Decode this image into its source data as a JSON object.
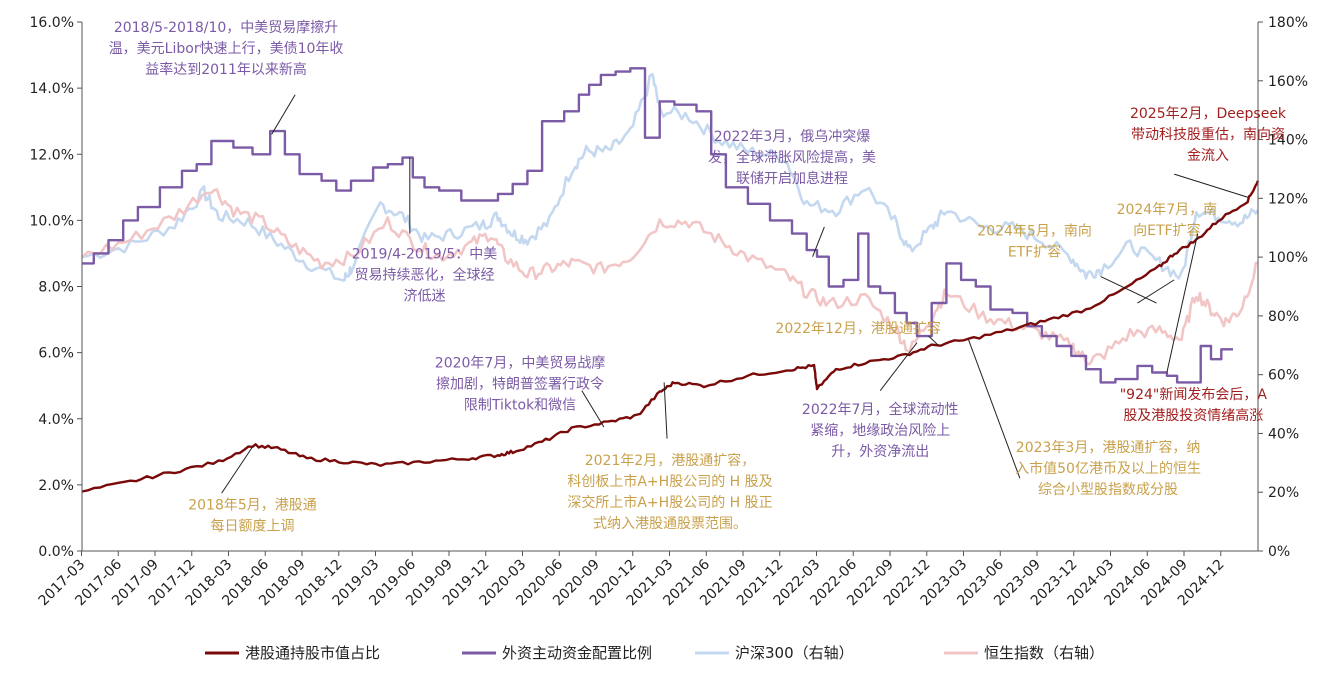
{
  "chart_data": {
    "type": "line",
    "left_axis": {
      "min": 0,
      "max": 16,
      "ticks": [
        "0.0%",
        "2.0%",
        "4.0%",
        "6.0%",
        "8.0%",
        "10.0%",
        "12.0%",
        "14.0%",
        "16.0%"
      ]
    },
    "right_axis": {
      "min": 0,
      "max": 180,
      "ticks": [
        "0%",
        "20%",
        "40%",
        "60%",
        "80%",
        "100%",
        "120%",
        "140%",
        "160%",
        "180%"
      ]
    },
    "x_range": [
      2017.17,
      2025.17
    ],
    "x_ticks": [
      "2017-03",
      "2017-06",
      "2017-09",
      "2017-12",
      "2018-03",
      "2018-06",
      "2018-09",
      "2018-12",
      "2019-03",
      "2019-06",
      "2019-09",
      "2019-12",
      "2020-03",
      "2020-06",
      "2020-09",
      "2020-12",
      "2021-03",
      "2021-06",
      "2021-09",
      "2021-12",
      "2022-03",
      "2022-06",
      "2022-09",
      "2022-12",
      "2023-03",
      "2023-06",
      "2023-09",
      "2023-12",
      "2024-03",
      "2024-06",
      "2024-09",
      "2024-12"
    ],
    "grid": false,
    "legend_position": "bottom",
    "series": [
      {
        "name": "港股通持股市值占比",
        "axis": "left",
        "color": "#7a0a0a",
        "points": [
          [
            2017.17,
            1.8
          ],
          [
            2017.5,
            2.1
          ],
          [
            2017.8,
            2.4
          ],
          [
            2018.1,
            2.7
          ],
          [
            2018.33,
            3.2
          ],
          [
            2018.5,
            3.1
          ],
          [
            2018.7,
            2.8
          ],
          [
            2018.95,
            2.7
          ],
          [
            2019.2,
            2.6
          ],
          [
            2019.5,
            2.7
          ],
          [
            2019.8,
            2.8
          ],
          [
            2020.0,
            2.9
          ],
          [
            2020.1,
            3.0
          ],
          [
            2020.3,
            3.3
          ],
          [
            2020.5,
            3.7
          ],
          [
            2020.75,
            3.9
          ],
          [
            2020.95,
            4.1
          ],
          [
            2021.1,
            4.8
          ],
          [
            2021.2,
            5.1
          ],
          [
            2021.4,
            5.0
          ],
          [
            2021.7,
            5.3
          ],
          [
            2022.0,
            5.5
          ],
          [
            2022.15,
            5.6
          ],
          [
            2022.17,
            4.9
          ],
          [
            2022.3,
            5.5
          ],
          [
            2022.5,
            5.7
          ],
          [
            2022.75,
            5.9
          ],
          [
            2022.95,
            6.2
          ],
          [
            2023.2,
            6.4
          ],
          [
            2023.5,
            6.7
          ],
          [
            2023.75,
            7.0
          ],
          [
            2024.0,
            7.3
          ],
          [
            2024.25,
            7.9
          ],
          [
            2024.5,
            8.6
          ],
          [
            2024.6,
            9.0
          ],
          [
            2024.75,
            9.4
          ],
          [
            2024.9,
            10.0
          ],
          [
            2025.1,
            10.6
          ],
          [
            2025.17,
            11.2
          ]
        ]
      },
      {
        "name": "外资主动资金配置比例",
        "axis": "left",
        "color": "#7b5aa6",
        "points": [
          [
            2017.17,
            8.7
          ],
          [
            2017.25,
            9.0
          ],
          [
            2017.35,
            9.4
          ],
          [
            2017.45,
            10.0
          ],
          [
            2017.55,
            10.4
          ],
          [
            2017.7,
            11.0
          ],
          [
            2017.85,
            11.5
          ],
          [
            2017.95,
            11.7
          ],
          [
            2018.05,
            12.4
          ],
          [
            2018.2,
            12.2
          ],
          [
            2018.33,
            12.0
          ],
          [
            2018.45,
            12.7
          ],
          [
            2018.55,
            12.0
          ],
          [
            2018.65,
            11.4
          ],
          [
            2018.8,
            11.2
          ],
          [
            2018.9,
            10.9
          ],
          [
            2019.0,
            11.2
          ],
          [
            2019.15,
            11.6
          ],
          [
            2019.25,
            11.7
          ],
          [
            2019.35,
            11.9
          ],
          [
            2019.42,
            11.3
          ],
          [
            2019.5,
            11.0
          ],
          [
            2019.6,
            10.9
          ],
          [
            2019.75,
            10.6
          ],
          [
            2019.9,
            10.6
          ],
          [
            2020.0,
            10.8
          ],
          [
            2020.1,
            11.1
          ],
          [
            2020.2,
            11.5
          ],
          [
            2020.3,
            13.0
          ],
          [
            2020.45,
            13.3
          ],
          [
            2020.55,
            13.8
          ],
          [
            2020.62,
            14.1
          ],
          [
            2020.7,
            14.4
          ],
          [
            2020.8,
            14.5
          ],
          [
            2020.9,
            14.6
          ],
          [
            2021.0,
            12.5
          ],
          [
            2021.1,
            13.6
          ],
          [
            2021.2,
            13.5
          ],
          [
            2021.35,
            13.3
          ],
          [
            2021.45,
            12.0
          ],
          [
            2021.55,
            11.0
          ],
          [
            2021.7,
            10.5
          ],
          [
            2021.85,
            10.0
          ],
          [
            2022.0,
            9.6
          ],
          [
            2022.1,
            9.1
          ],
          [
            2022.17,
            8.9
          ],
          [
            2022.25,
            8.0
          ],
          [
            2022.35,
            8.2
          ],
          [
            2022.45,
            9.6
          ],
          [
            2022.52,
            8.0
          ],
          [
            2022.6,
            7.8
          ],
          [
            2022.7,
            7.2
          ],
          [
            2022.78,
            6.9
          ],
          [
            2022.85,
            6.5
          ],
          [
            2022.95,
            7.5
          ],
          [
            2023.05,
            8.7
          ],
          [
            2023.15,
            8.2
          ],
          [
            2023.25,
            8.0
          ],
          [
            2023.35,
            7.3
          ],
          [
            2023.5,
            7.2
          ],
          [
            2023.6,
            6.8
          ],
          [
            2023.7,
            6.5
          ],
          [
            2023.8,
            6.2
          ],
          [
            2023.9,
            5.9
          ],
          [
            2024.0,
            5.5
          ],
          [
            2024.1,
            5.1
          ],
          [
            2024.2,
            5.2
          ],
          [
            2024.35,
            5.6
          ],
          [
            2024.45,
            5.4
          ],
          [
            2024.55,
            5.3
          ],
          [
            2024.62,
            5.1
          ],
          [
            2024.7,
            5.1
          ],
          [
            2024.78,
            6.2
          ],
          [
            2024.85,
            5.8
          ],
          [
            2024.92,
            6.1
          ],
          [
            2025.0,
            6.1
          ]
        ]
      },
      {
        "name": "沪深300（右轴）",
        "axis": "right",
        "color": "#c4d8f0",
        "points": [
          [
            2017.17,
            100
          ],
          [
            2017.5,
            104
          ],
          [
            2017.8,
            111
          ],
          [
            2018.0,
            122
          ],
          [
            2018.1,
            114
          ],
          [
            2018.3,
            112
          ],
          [
            2018.5,
            105
          ],
          [
            2018.7,
            98
          ],
          [
            2018.95,
            92
          ],
          [
            2019.0,
            96
          ],
          [
            2019.2,
            118
          ],
          [
            2019.35,
            114
          ],
          [
            2019.5,
            106
          ],
          [
            2019.7,
            108
          ],
          [
            2019.9,
            111
          ],
          [
            2020.0,
            114
          ],
          [
            2020.1,
            108
          ],
          [
            2020.2,
            106
          ],
          [
            2020.35,
            112
          ],
          [
            2020.5,
            130
          ],
          [
            2020.6,
            136
          ],
          [
            2020.75,
            136
          ],
          [
            2020.9,
            142
          ],
          [
            2021.05,
            162
          ],
          [
            2021.1,
            150
          ],
          [
            2021.3,
            148
          ],
          [
            2021.5,
            140
          ],
          [
            2021.7,
            136
          ],
          [
            2021.95,
            134
          ],
          [
            2022.1,
            118
          ],
          [
            2022.3,
            116
          ],
          [
            2022.5,
            124
          ],
          [
            2022.7,
            112
          ],
          [
            2022.8,
            102
          ],
          [
            2022.95,
            110
          ],
          [
            2023.05,
            116
          ],
          [
            2023.3,
            110
          ],
          [
            2023.5,
            110
          ],
          [
            2023.7,
            106
          ],
          [
            2023.9,
            100
          ],
          [
            2024.0,
            94
          ],
          [
            2024.1,
            96
          ],
          [
            2024.3,
            104
          ],
          [
            2024.5,
            98
          ],
          [
            2024.65,
            93
          ],
          [
            2024.75,
            116
          ],
          [
            2024.9,
            114
          ],
          [
            2025.05,
            112
          ],
          [
            2025.17,
            116
          ]
        ]
      },
      {
        "name": "恒生指数（右轴）",
        "axis": "right",
        "color": "#f2c6c6",
        "points": [
          [
            2017.17,
            100
          ],
          [
            2017.5,
            106
          ],
          [
            2017.8,
            114
          ],
          [
            2018.05,
            124
          ],
          [
            2018.2,
            116
          ],
          [
            2018.4,
            112
          ],
          [
            2018.6,
            104
          ],
          [
            2018.8,
            98
          ],
          [
            2019.0,
            100
          ],
          [
            2019.25,
            112
          ],
          [
            2019.45,
            104
          ],
          [
            2019.6,
            100
          ],
          [
            2019.8,
            104
          ],
          [
            2019.95,
            108
          ],
          [
            2020.05,
            100
          ],
          [
            2020.2,
            94
          ],
          [
            2020.35,
            96
          ],
          [
            2020.5,
            98
          ],
          [
            2020.7,
            96
          ],
          [
            2020.9,
            100
          ],
          [
            2021.1,
            112
          ],
          [
            2021.3,
            112
          ],
          [
            2021.5,
            106
          ],
          [
            2021.7,
            100
          ],
          [
            2021.95,
            94
          ],
          [
            2022.1,
            88
          ],
          [
            2022.25,
            84
          ],
          [
            2022.5,
            86
          ],
          [
            2022.7,
            76
          ],
          [
            2022.8,
            68
          ],
          [
            2022.95,
            80
          ],
          [
            2023.05,
            88
          ],
          [
            2023.3,
            80
          ],
          [
            2023.5,
            77
          ],
          [
            2023.7,
            74
          ],
          [
            2023.9,
            70
          ],
          [
            2024.0,
            65
          ],
          [
            2024.1,
            66
          ],
          [
            2024.3,
            74
          ],
          [
            2024.5,
            75
          ],
          [
            2024.65,
            72
          ],
          [
            2024.75,
            88
          ],
          [
            2024.85,
            82
          ],
          [
            2024.95,
            78
          ],
          [
            2025.05,
            82
          ],
          [
            2025.17,
            98
          ]
        ]
      }
    ],
    "annotations": [
      {
        "lines": [
          "2018/5-2018/10，中美贸易摩擦升",
          "温，美元Libor快速上行，美债10年收",
          "益率达到2011年以来新高"
        ],
        "color": "#7b5aa6",
        "x": 2018.15,
        "y": 15.7,
        "anchor": "middle",
        "leader": [
          [
            2018.62,
            13.8
          ],
          [
            2018.46,
            12.6
          ]
        ]
      },
      {
        "lines": [
          "2019/4-2019/5：中美",
          "贸易持续恶化，全球经",
          "济低迷"
        ],
        "color": "#7b5aa6",
        "x": 2019.5,
        "y": 8.85,
        "anchor": "middle",
        "leader": [
          [
            2019.4,
            9.6
          ],
          [
            2019.4,
            11.9
          ]
        ]
      },
      {
        "lines": [
          "2020年7月，中美贸易战摩",
          "擦加剧，特朗普签署行政令",
          "限制Tiktok和微信"
        ],
        "color": "#7b5aa6",
        "x": 2020.15,
        "y": 5.55,
        "anchor": "middle",
        "leader": [
          [
            2020.57,
            4.85
          ],
          [
            2020.72,
            3.75
          ]
        ]
      },
      {
        "lines": [
          "2018年5月，港股通",
          "每日额度上调"
        ],
        "color": "#c9a14b",
        "x": 2018.33,
        "y": 1.25,
        "anchor": "middle",
        "leader": [
          [
            2018.12,
            1.75
          ],
          [
            2018.33,
            3.15
          ]
        ]
      },
      {
        "lines": [
          "2021年2月，港股通扩容，",
          "科创板上市A+H股公司的 H 股及",
          "深交所上市A+H股公司的 H 股正",
          "式纳入港股通股票范围。"
        ],
        "color": "#c9a14b",
        "x": 2021.17,
        "y": 2.6,
        "anchor": "middle",
        "leader": [
          [
            2021.15,
            3.4
          ],
          [
            2021.13,
            5.1
          ]
        ]
      },
      {
        "lines": [
          "2022年3月，俄乌冲突爆",
          "发，全球滞胀风险提高，美",
          "联储开启加息进程"
        ],
        "color": "#7b5aa6",
        "x": 2022.0,
        "y": 12.4,
        "anchor": "middle",
        "leader": [
          [
            2022.22,
            9.8
          ],
          [
            2022.14,
            8.9
          ]
        ]
      },
      {
        "lines": [
          "2022年7月，全球流动性",
          "紧缩，地缘政治风险上",
          "升，外资净流出"
        ],
        "color": "#7b5aa6",
        "x": 2022.6,
        "y": 4.15,
        "anchor": "middle",
        "leader": [
          [
            2022.6,
            4.85
          ],
          [
            2022.85,
            6.3
          ]
        ]
      },
      {
        "lines": [
          "2022年12月，港股通扩容"
        ],
        "color": "#c9a14b",
        "x": 2022.45,
        "y": 6.6,
        "anchor": "middle",
        "leader": [
          [
            2022.93,
            6.5
          ],
          [
            2023.0,
            6.2
          ]
        ]
      },
      {
        "lines": [
          "2024年5月，南向",
          "ETF扩容"
        ],
        "color": "#c9a14b",
        "x": 2023.65,
        "y": 9.55,
        "anchor": "middle",
        "leader": [
          [
            2024.35,
            7.5
          ],
          [
            2024.6,
            8.2
          ]
        ]
      },
      {
        "lines": [
          "2023年3月，港股通扩容，纳",
          "入市值50亿港币及以上的恒生",
          "综合小型股指数成分股"
        ],
        "color": "#c9a14b",
        "x": 2024.15,
        "y": 3.0,
        "anchor": "middle",
        "leader": [
          [
            2023.55,
            2.2
          ],
          [
            2023.2,
            6.4
          ]
        ]
      },
      {
        "lines": [
          "2024年7月，南",
          "向ETF扩容"
        ],
        "color": "#c9a14b",
        "x": 2024.55,
        "y": 10.2,
        "anchor": "middle",
        "leader": [
          [
            2024.1,
            8.3
          ],
          [
            2024.48,
            7.5
          ]
        ]
      },
      {
        "lines": [
          "2025年2月，Deepseek",
          "带动科技股重估，南向资",
          "金流入"
        ],
        "color": "#a32020",
        "x": 2024.83,
        "y": 13.1,
        "anchor": "middle",
        "leader": [
          [
            2024.6,
            11.4
          ],
          [
            2025.1,
            10.7
          ]
        ]
      },
      {
        "lines": [
          "\"924\"新闻发布会后，A",
          "股及港股投资情绪高涨"
        ],
        "color": "#a32020",
        "x": 2024.73,
        "y": 4.6,
        "anchor": "middle",
        "leader": [
          [
            2024.55,
            5.4
          ],
          [
            2024.76,
            9.6
          ]
        ]
      }
    ]
  }
}
